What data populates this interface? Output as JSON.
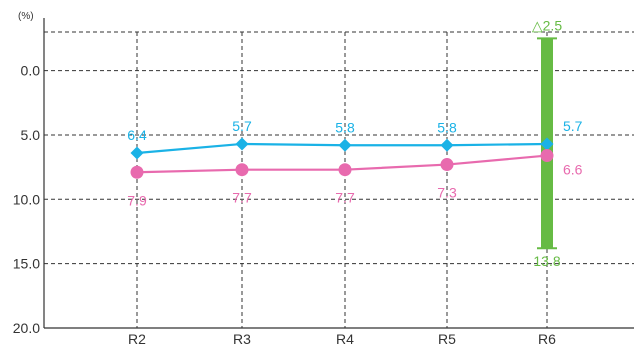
{
  "chart_data": {
    "type": "line",
    "y_unit": "(%)",
    "ylim": [
      -3,
      20
    ],
    "y_ticks": [
      0,
      5,
      10,
      15,
      20
    ],
    "y_tick_labels": [
      "0.0",
      "5.0",
      "10.0",
      "15.0",
      "20.0"
    ],
    "y_inverted": true,
    "grid": true,
    "categories": [
      "R2",
      "R3",
      "R4",
      "R5",
      "R6"
    ],
    "series": [
      {
        "values": [
          6.4,
          5.7,
          5.8,
          5.8,
          5.7
        ],
        "labels": [
          "6.4",
          "5.7",
          "5.8",
          "5.8",
          "5.7"
        ],
        "marker": "diamond",
        "color": "#1ab2e6"
      },
      {
        "values": [
          7.9,
          7.7,
          7.7,
          7.3,
          6.6
        ],
        "labels": [
          "7.9",
          "7.7",
          "7.7",
          "7.3",
          "6.6"
        ],
        "marker": "circle",
        "color": "#e86aae"
      }
    ],
    "range_bar": {
      "category": "R6",
      "low": -2.5,
      "high": 13.8,
      "low_label": "△2.5",
      "high_label": "13.8",
      "color": "#66bb44"
    }
  }
}
